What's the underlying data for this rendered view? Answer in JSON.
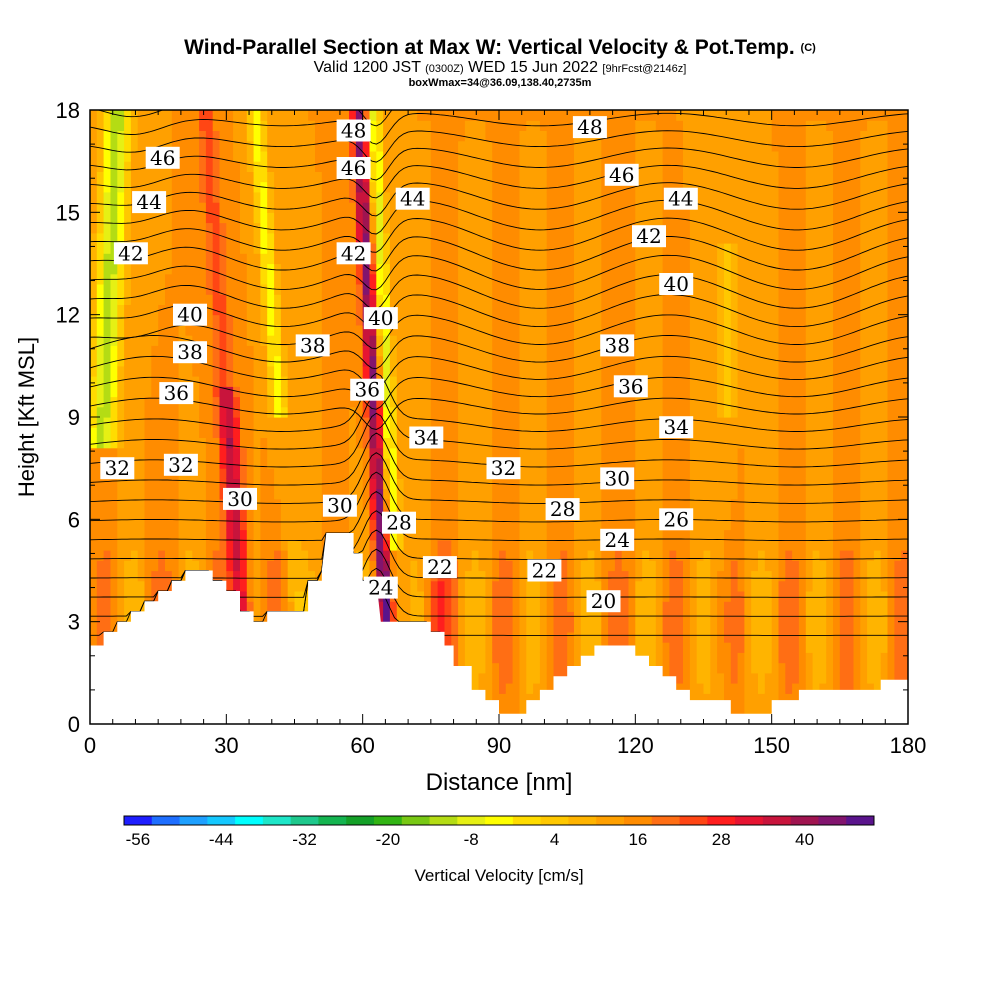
{
  "title": {
    "main": "Wind-Parallel Section at Max W: Vertical Velocity & Pot.Temp.",
    "copyright_mark": "(C)",
    "valid_prefix": "Valid 1200 JST",
    "valid_utc": "(0300Z)",
    "valid_date": "WED 15 Jun 2022",
    "forecast": "[9hrFcst@2146z]",
    "box_info": "boxWmax=34@36.09,138.40,2735m"
  },
  "chart_data": {
    "type": "heatmap",
    "xlabel": "Distance [nm]",
    "ylabel": "Height [Kft MSL]",
    "xlim": [
      0,
      180
    ],
    "ylim": [
      0,
      18
    ],
    "x_ticks": [
      "0",
      "30",
      "60",
      "90",
      "120",
      "150",
      "180"
    ],
    "x_tick_values": [
      0,
      30,
      60,
      90,
      120,
      150,
      180
    ],
    "y_ticks": [
      "0",
      "3",
      "6",
      "9",
      "12",
      "15",
      "18"
    ],
    "y_tick_values": [
      0,
      3,
      6,
      9,
      12,
      15,
      18
    ],
    "terrain": [
      [
        0,
        2.3
      ],
      [
        3,
        2.3
      ],
      [
        3,
        2.7
      ],
      [
        6,
        2.7
      ],
      [
        6,
        3.0
      ],
      [
        9,
        3.0
      ],
      [
        9,
        3.3
      ],
      [
        12,
        3.3
      ],
      [
        12,
        3.6
      ],
      [
        15,
        3.6
      ],
      [
        15,
        3.9
      ],
      [
        18,
        3.9
      ],
      [
        18,
        4.2
      ],
      [
        21,
        4.2
      ],
      [
        21,
        4.5
      ],
      [
        27,
        4.5
      ],
      [
        27,
        4.2
      ],
      [
        30,
        4.2
      ],
      [
        30,
        3.9
      ],
      [
        33,
        3.9
      ],
      [
        33,
        3.3
      ],
      [
        36,
        3.3
      ],
      [
        36,
        3.0
      ],
      [
        39,
        3.0
      ],
      [
        39,
        3.3
      ],
      [
        48,
        3.3
      ],
      [
        48,
        4.2
      ],
      [
        51,
        4.2
      ],
      [
        51,
        4.5
      ],
      [
        52,
        5.6
      ],
      [
        58,
        5.6
      ],
      [
        58,
        5.0
      ],
      [
        60,
        5.0
      ],
      [
        60,
        4.2
      ],
      [
        63,
        4.2
      ],
      [
        64,
        3.0
      ],
      [
        75,
        3.0
      ],
      [
        75,
        2.7
      ],
      [
        78,
        2.7
      ],
      [
        78,
        2.3
      ],
      [
        80,
        2.3
      ],
      [
        80,
        1.7
      ],
      [
        82,
        1.7
      ],
      [
        84,
        1.7
      ],
      [
        84,
        1.0
      ],
      [
        87,
        1.0
      ],
      [
        87,
        0.7
      ],
      [
        90,
        0.7
      ],
      [
        90,
        0.3
      ],
      [
        96,
        0.3
      ],
      [
        96,
        0.7
      ],
      [
        99,
        0.7
      ],
      [
        99,
        1.0
      ],
      [
        102,
        1.0
      ],
      [
        102,
        1.4
      ],
      [
        105,
        1.4
      ],
      [
        105,
        1.7
      ],
      [
        108,
        1.7
      ],
      [
        108,
        2.0
      ],
      [
        111,
        2.0
      ],
      [
        111,
        2.3
      ],
      [
        120,
        2.3
      ],
      [
        120,
        2.0
      ],
      [
        123,
        2.0
      ],
      [
        123,
        1.7
      ],
      [
        126,
        1.7
      ],
      [
        126,
        1.4
      ],
      [
        129,
        1.4
      ],
      [
        129,
        1.0
      ],
      [
        132,
        1.0
      ],
      [
        132,
        0.7
      ],
      [
        141,
        0.7
      ],
      [
        141,
        0.3
      ],
      [
        150,
        0.3
      ],
      [
        150,
        0.7
      ],
      [
        156,
        0.7
      ],
      [
        156,
        1.0
      ],
      [
        174,
        1.0
      ],
      [
        174,
        1.3
      ],
      [
        180,
        1.3
      ],
      [
        180,
        0
      ]
    ],
    "isentrope_labels": [
      {
        "text": "48",
        "x": 58,
        "y": 17.4
      },
      {
        "text": "48",
        "x": 110,
        "y": 17.5
      },
      {
        "text": "46",
        "x": 16,
        "y": 16.6
      },
      {
        "text": "46",
        "x": 58,
        "y": 16.3
      },
      {
        "text": "46",
        "x": 117,
        "y": 16.1
      },
      {
        "text": "44",
        "x": 13,
        "y": 15.3
      },
      {
        "text": "44",
        "x": 71,
        "y": 15.4
      },
      {
        "text": "44",
        "x": 130,
        "y": 15.4
      },
      {
        "text": "42",
        "x": 9,
        "y": 13.8
      },
      {
        "text": "42",
        "x": 58,
        "y": 13.8
      },
      {
        "text": "42",
        "x": 123,
        "y": 14.3
      },
      {
        "text": "40",
        "x": 22,
        "y": 12.0
      },
      {
        "text": "40",
        "x": 64,
        "y": 11.9
      },
      {
        "text": "40",
        "x": 129,
        "y": 12.9
      },
      {
        "text": "38",
        "x": 22,
        "y": 10.9
      },
      {
        "text": "38",
        "x": 49,
        "y": 11.1
      },
      {
        "text": "38",
        "x": 116,
        "y": 11.1
      },
      {
        "text": "36",
        "x": 19,
        "y": 9.7
      },
      {
        "text": "36",
        "x": 61,
        "y": 9.8
      },
      {
        "text": "36",
        "x": 119,
        "y": 9.9
      },
      {
        "text": "34",
        "x": 74,
        "y": 8.4
      },
      {
        "text": "34",
        "x": 129,
        "y": 8.7
      },
      {
        "text": "32",
        "x": 6,
        "y": 7.5
      },
      {
        "text": "32",
        "x": 20,
        "y": 7.6
      },
      {
        "text": "32",
        "x": 91,
        "y": 7.5
      },
      {
        "text": "30",
        "x": 33,
        "y": 6.6
      },
      {
        "text": "30",
        "x": 55,
        "y": 6.4
      },
      {
        "text": "30",
        "x": 116,
        "y": 7.2
      },
      {
        "text": "28",
        "x": 68,
        "y": 5.9
      },
      {
        "text": "28",
        "x": 104,
        "y": 6.3
      },
      {
        "text": "26",
        "x": 129,
        "y": 6.0
      },
      {
        "text": "24",
        "x": 64,
        "y": 4.0
      },
      {
        "text": "24",
        "x": 116,
        "y": 5.4
      },
      {
        "text": "22",
        "x": 77,
        "y": 4.6
      },
      {
        "text": "22",
        "x": 100,
        "y": 4.5
      },
      {
        "text": "20",
        "x": 113,
        "y": 3.6
      }
    ],
    "colorbar": {
      "label": "Vertical Velocity [cm/s]",
      "tick_labels": [
        "-56",
        "-44",
        "-32",
        "-20",
        "-8",
        "4",
        "16",
        "28",
        "40"
      ],
      "colors": [
        "#1e1eff",
        "#1e6eff",
        "#1ea0ff",
        "#14c8ff",
        "#00ffff",
        "#1ee6c8",
        "#1ec88c",
        "#14b450",
        "#14a028",
        "#32b414",
        "#78c814",
        "#b4dc14",
        "#e6f014",
        "#ffff00",
        "#ffdc00",
        "#ffc800",
        "#ffb400",
        "#ffa000",
        "#ff8c00",
        "#ff6e14",
        "#ff4614",
        "#ff1e1e",
        "#e61432",
        "#c8143c",
        "#a01450",
        "#82146e",
        "#5a148c"
      ]
    }
  }
}
